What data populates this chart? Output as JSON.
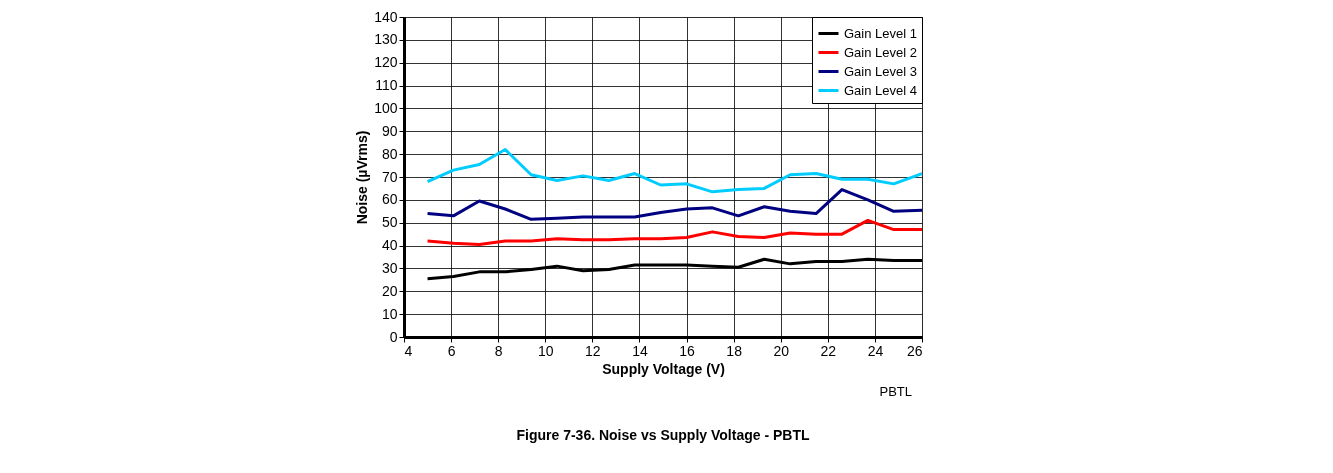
{
  "chart_data": {
    "type": "line",
    "title": "Figure 7-36. Noise vs Supply Voltage - PBTL",
    "xlabel": "Supply Voltage (V)",
    "ylabel": "Noise (µVrms)",
    "annotations": [
      "PBTL"
    ],
    "x": [
      5,
      6.1,
      7.2,
      8.3,
      9.4,
      10.5,
      11.6,
      12.7,
      13.8,
      14.9,
      16,
      17.1,
      18.2,
      19.3,
      20.4,
      21.5,
      22.6,
      23.7,
      24.8,
      26
    ],
    "series": [
      {
        "name": "Gain Level 1",
        "color": "#000000",
        "values": [
          25.5,
          26.5,
          28.5,
          28.5,
          29.5,
          31,
          29,
          29.5,
          31.5,
          31.5,
          31.5,
          31,
          30.5,
          34,
          32,
          33,
          33,
          34,
          33.5,
          33.5
        ]
      },
      {
        "name": "Gain Level 2",
        "color": "#ff0000",
        "values": [
          42,
          41,
          40.5,
          42,
          42,
          43,
          42.5,
          42.5,
          43,
          43,
          43.5,
          46,
          44,
          43.5,
          45.5,
          45,
          45,
          51,
          47,
          47
        ]
      },
      {
        "name": "Gain Level 3",
        "color": "#000080",
        "values": [
          54,
          53,
          59.5,
          56,
          51.5,
          52,
          52.5,
          52.5,
          52.5,
          54.5,
          56,
          56.5,
          53,
          57,
          55,
          54,
          64.5,
          60,
          55,
          55.5
        ]
      },
      {
        "name": "Gain Level 4",
        "color": "#00ccff",
        "values": [
          68,
          73,
          75.5,
          82,
          71,
          68.5,
          70.5,
          68.5,
          71.5,
          66.5,
          67,
          63.5,
          64.5,
          65,
          71,
          71.5,
          69,
          69,
          67,
          71.5
        ]
      }
    ],
    "xlim": [
      4,
      26
    ],
    "xticks": [
      4,
      6,
      8,
      10,
      12,
      14,
      16,
      18,
      20,
      22,
      24,
      26
    ],
    "ylim": [
      0,
      140
    ],
    "yticks": [
      0,
      10,
      20,
      30,
      40,
      50,
      60,
      70,
      80,
      90,
      100,
      110,
      120,
      130,
      140
    ],
    "grid": true,
    "legend": "top right",
    "marker": "none",
    "line_style": "solid"
  }
}
